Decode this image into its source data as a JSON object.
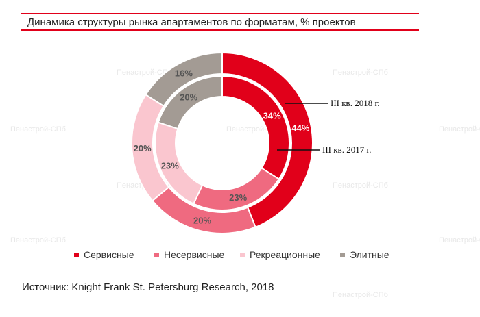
{
  "watermark_text": "Пенастрой-СПб",
  "chart_data": {
    "type": "donut",
    "title": "Динамика структуры рынка апартаментов по форматам, % проектов",
    "categories": [
      "Сервисные",
      "Несервисные",
      "Рекреационные",
      "Элитные"
    ],
    "colors": [
      "#e1001a",
      "#ef6a80",
      "#fac6cf",
      "#a39b94"
    ],
    "series": [
      {
        "name": "III кв. 2018 г.",
        "ring": "outer",
        "values": [
          44,
          20,
          20,
          16
        ],
        "labels": [
          "44%",
          "20%",
          "20%",
          "16%"
        ]
      },
      {
        "name": "III кв. 2017 г.",
        "ring": "inner",
        "values": [
          34,
          23,
          23,
          20
        ],
        "labels": [
          "34%",
          "23%",
          "23%",
          "20%"
        ]
      }
    ],
    "legend_position": "bottom"
  },
  "source": "Источник: Knight Frank St. Petersburg Research, 2018"
}
